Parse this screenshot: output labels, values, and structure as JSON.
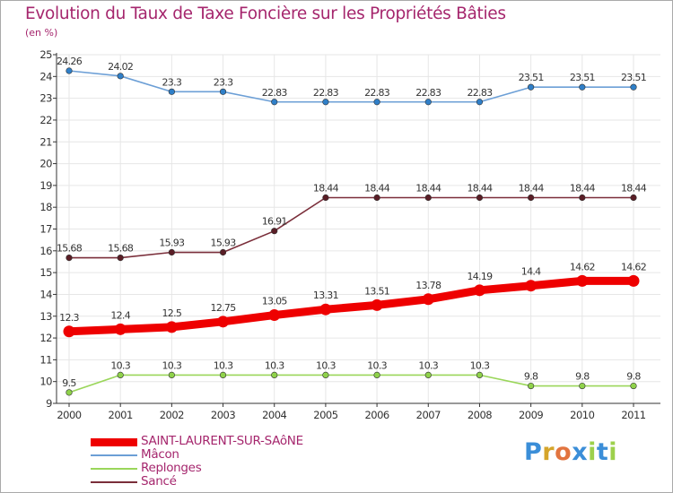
{
  "title": "Evolution du Taux de Taxe Foncière sur les Propriétés Bâties",
  "unit_label": "(en %)",
  "brand": {
    "text": "Proxiti",
    "letter_colors": [
      "#3b8ed8",
      "#d5a52b",
      "#e2743f",
      "#3b8ed8",
      "#9dd04c",
      "#3b8ed8",
      "#9dd04c"
    ]
  },
  "chart_data": {
    "type": "line",
    "title": "Evolution du Taux de Taxe Foncière sur les Propriétés Bâties",
    "ylabel": "(en %)",
    "xlabel": "",
    "x": [
      "2000",
      "2001",
      "2002",
      "2003",
      "2004",
      "2005",
      "2006",
      "2007",
      "2008",
      "2009",
      "2010",
      "2011"
    ],
    "ylim": [
      9,
      25
    ],
    "yticks": [
      "9",
      "10",
      "11",
      "12",
      "13",
      "14",
      "15",
      "16",
      "17",
      "18",
      "19",
      "20",
      "21",
      "22",
      "23",
      "24",
      "25"
    ],
    "grid": true,
    "legend_position": "bottom-left",
    "series": [
      {
        "name": "SAINT-LAURENT-SUR-SAôNE",
        "color": "#ee0000",
        "marker_color": "#ee0000",
        "emphasis": "thick",
        "values": [
          12.3,
          12.4,
          12.5,
          12.75,
          13.05,
          13.31,
          13.51,
          13.78,
          14.19,
          14.4,
          14.62,
          14.62
        ],
        "labels": [
          "12.3",
          "12.4",
          "12.5",
          "12.75",
          "13.05",
          "13.31",
          "13.51",
          "13.78",
          "14.19",
          "14.4",
          "14.62",
          "14.62"
        ]
      },
      {
        "name": "Mâcon",
        "color": "#6c9fd6",
        "marker_color": "#2f7fc8",
        "emphasis": "thin",
        "values": [
          24.26,
          24.02,
          23.3,
          23.3,
          22.83,
          22.83,
          22.83,
          22.83,
          22.83,
          23.51,
          23.51,
          23.51
        ],
        "labels": [
          "24.26",
          "24.02",
          "23.3",
          "23.3",
          "22.83",
          "22.83",
          "22.83",
          "22.83",
          "22.83",
          "23.51",
          "23.51",
          "23.51"
        ]
      },
      {
        "name": "Replonges",
        "color": "#9ad65a",
        "marker_color": "#8fd24a",
        "emphasis": "thin",
        "values": [
          9.5,
          10.3,
          10.3,
          10.3,
          10.3,
          10.3,
          10.3,
          10.3,
          10.3,
          9.8,
          9.8,
          9.8
        ],
        "labels": [
          "9.5",
          "10.3",
          "10.3",
          "10.3",
          "10.3",
          "10.3",
          "10.3",
          "10.3",
          "10.3",
          "9.8",
          "9.8",
          "9.8"
        ]
      },
      {
        "name": "Sancé",
        "color": "#7a2e3a",
        "marker_color": "#5a1e26",
        "emphasis": "thin",
        "values": [
          15.68,
          15.68,
          15.93,
          15.93,
          16.91,
          18.44,
          18.44,
          18.44,
          18.44,
          18.44,
          18.44,
          18.44
        ],
        "labels": [
          "15.68",
          "15.68",
          "15.93",
          "15.93",
          "16.91",
          "18.44",
          "18.44",
          "18.44",
          "18.44",
          "18.44",
          "18.44",
          "18.44"
        ]
      }
    ]
  }
}
